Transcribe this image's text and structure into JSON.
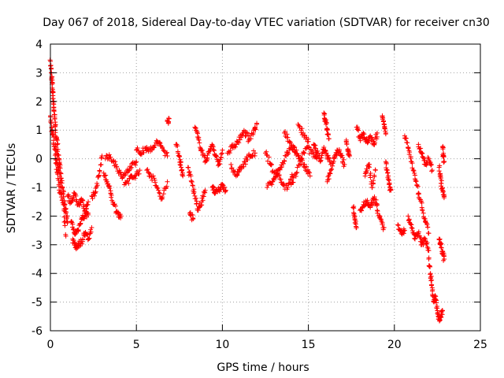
{
  "chart_data": {
    "type": "scatter",
    "title": "Day 067 of 2018, Sidereal Day-to-day VTEC variation (SDTVAR) for receiver cn30",
    "xlabel": "GPS time / hours",
    "ylabel": "SDTVAR / TECUs",
    "xlim": [
      0,
      25
    ],
    "ylim": [
      -6,
      4
    ],
    "xticks": [
      0,
      5,
      10,
      15,
      20,
      25
    ],
    "xtick_labels": [
      "0",
      "5",
      "10",
      "15",
      "20",
      "25"
    ],
    "yticks": [
      -6,
      -5,
      -4,
      -3,
      -2,
      -1,
      0,
      1,
      2,
      3,
      4
    ],
    "ytick_labels": [
      "-6",
      "-5",
      "-4",
      "-3",
      "-2",
      "-1",
      "0",
      "1",
      "2",
      "3",
      "4"
    ],
    "grid": true,
    "marker": "+",
    "series": [
      {
        "name": "SDTVAR",
        "color": "#ff0000",
        "segments": [
          {
            "x": [
              0.0,
              0.05,
              0.1,
              0.15,
              0.2,
              0.25,
              0.3,
              0.4,
              0.5,
              0.6,
              0.7,
              0.8,
              0.9,
              1.0
            ],
            "y": [
              3.4,
              3.0,
              2.6,
              2.2,
              1.8,
              1.4,
              1.0,
              0.5,
              0.0,
              -0.5,
              -1.0,
              -1.5,
              -1.9,
              -2.2
            ]
          },
          {
            "x": [
              0.3,
              0.45,
              0.6,
              0.75,
              0.9
            ],
            "y": [
              0.5,
              -0.3,
              -1.0,
              -1.6,
              -2.7
            ]
          },
          {
            "x": [
              0.0,
              0.1,
              0.2,
              0.3,
              0.4,
              0.55
            ],
            "y": [
              1.5,
              1.0,
              0.5,
              0.0,
              -0.5,
              -1.2
            ]
          },
          {
            "x": [
              1.0,
              1.2,
              1.4,
              1.6,
              1.8,
              2.0,
              2.2
            ],
            "y": [
              -1.3,
              -1.5,
              -1.2,
              -1.6,
              -1.4,
              -1.8,
              -1.5
            ]
          },
          {
            "x": [
              1.3,
              1.45,
              1.6,
              1.8,
              2.0,
              2.2,
              2.4
            ],
            "y": [
              -2.8,
              -3.1,
              -3.0,
              -2.9,
              -2.6,
              -2.8,
              -2.4
            ]
          },
          {
            "x": [
              1.2,
              1.4,
              1.6,
              1.8,
              2.0,
              2.2
            ],
            "y": [
              -2.2,
              -2.6,
              -2.5,
              -2.1,
              -2.0,
              -1.9
            ]
          },
          {
            "x": [
              2.4,
              2.6,
              2.8,
              3.0
            ],
            "y": [
              -1.3,
              -1.2,
              -0.6,
              0.1
            ]
          },
          {
            "x": [
              3.1,
              3.3,
              3.5,
              3.7,
              3.9,
              4.1
            ],
            "y": [
              -0.5,
              -0.8,
              -1.2,
              -1.6,
              -1.9,
              -2.0
            ]
          },
          {
            "x": [
              3.2,
              3.5,
              3.8,
              4.1,
              4.4,
              4.7,
              5.0
            ],
            "y": [
              0.0,
              0.05,
              -0.2,
              -0.6,
              -0.5,
              -0.3,
              -0.1
            ]
          },
          {
            "x": [
              4.3,
              4.6,
              4.9,
              5.2
            ],
            "y": [
              -0.9,
              -0.7,
              -0.6,
              -0.4
            ]
          },
          {
            "x": [
              5.0,
              5.3,
              5.6,
              5.9,
              6.2,
              6.5,
              6.8
            ],
            "y": [
              0.3,
              0.2,
              0.4,
              0.3,
              0.6,
              0.4,
              0.1
            ]
          },
          {
            "x": [
              5.6,
              5.9,
              6.2,
              6.5,
              6.8
            ],
            "y": [
              -0.4,
              -0.6,
              -1.0,
              -1.4,
              -0.8
            ]
          },
          {
            "x": [
              6.8,
              6.9
            ],
            "y": [
              1.3,
              1.4
            ]
          },
          {
            "x": [
              7.3,
              7.5,
              7.6,
              7.7
            ],
            "y": [
              0.5,
              0.1,
              -0.3,
              -0.6
            ]
          },
          {
            "x": [
              8.0,
              8.2,
              8.4,
              8.6,
              8.8,
              9.0
            ],
            "y": [
              -0.3,
              -0.8,
              -1.3,
              -1.8,
              -1.5,
              -1.1
            ]
          },
          {
            "x": [
              8.1,
              8.3
            ],
            "y": [
              -1.9,
              -2.1
            ]
          },
          {
            "x": [
              8.4,
              8.6,
              8.8,
              9.0,
              9.2,
              9.4,
              9.6,
              9.8,
              10.0
            ],
            "y": [
              1.1,
              0.7,
              0.3,
              -0.1,
              0.2,
              0.5,
              0.1,
              -0.2,
              0.3
            ]
          },
          {
            "x": [
              9.4,
              9.6,
              9.8,
              10.0,
              10.2
            ],
            "y": [
              -1.0,
              -1.2,
              -1.1,
              -0.9,
              -1.1
            ]
          },
          {
            "x": [
              10.3,
              10.6,
              10.9,
              11.2,
              11.5
            ],
            "y": [
              0.2,
              0.4,
              0.6,
              0.9,
              0.8
            ]
          },
          {
            "x": [
              10.5,
              10.8,
              11.0,
              11.3,
              11.6,
              11.9
            ],
            "y": [
              -0.2,
              -0.6,
              -0.4,
              -0.1,
              0.1,
              0.2
            ]
          },
          {
            "x": [
              11.5,
              11.8,
              12.0
            ],
            "y": [
              0.6,
              0.9,
              1.2
            ]
          },
          {
            "x": [
              12.5,
              12.8,
              13.1,
              13.4,
              13.7,
              14.0,
              14.3
            ],
            "y": [
              0.2,
              -0.2,
              -0.6,
              -0.3,
              0.1,
              0.4,
              0.3
            ]
          },
          {
            "x": [
              12.6,
              12.9,
              13.2,
              13.5,
              13.8,
              14.1
            ],
            "y": [
              -1.0,
              -0.8,
              -0.4,
              -0.9,
              -1.0,
              -0.6
            ]
          },
          {
            "x": [
              13.6,
              13.9,
              14.2,
              14.5,
              14.8,
              15.1
            ],
            "y": [
              0.9,
              0.6,
              0.3,
              0.0,
              -0.3,
              -0.6
            ]
          },
          {
            "x": [
              14.0,
              14.3,
              14.6,
              14.9,
              15.2,
              15.5
            ],
            "y": [
              -0.9,
              -0.5,
              0.0,
              0.4,
              0.2,
              0.0
            ]
          },
          {
            "x": [
              14.4,
              14.7,
              15.0
            ],
            "y": [
              1.2,
              0.9,
              0.6
            ]
          },
          {
            "x": [
              15.3,
              15.5,
              15.7,
              15.9,
              16.1,
              16.3
            ],
            "y": [
              0.5,
              0.2,
              -0.1,
              0.4,
              0.1,
              -0.2
            ]
          },
          {
            "x": [
              15.9,
              16.0,
              16.1,
              16.2
            ],
            "y": [
              1.6,
              1.3,
              1.0,
              0.7
            ]
          },
          {
            "x": [
              16.1,
              16.3,
              16.5,
              16.7,
              16.9,
              17.1
            ],
            "y": [
              -0.8,
              -0.4,
              0.0,
              0.3,
              0.1,
              -0.2
            ]
          },
          {
            "x": [
              17.2,
              17.3,
              17.4
            ],
            "y": [
              0.6,
              0.3,
              0.1
            ]
          },
          {
            "x": [
              17.6,
              17.7,
              17.8
            ],
            "y": [
              -1.7,
              -2.1,
              -2.4
            ]
          },
          {
            "x": [
              17.8,
              18.0,
              18.2,
              18.4,
              18.6,
              18.8,
              19.0
            ],
            "y": [
              1.1,
              0.7,
              0.9,
              0.6,
              0.8,
              0.5,
              0.9
            ]
          },
          {
            "x": [
              18.0,
              18.2,
              18.4,
              18.6,
              18.8,
              19.0
            ],
            "y": [
              -1.8,
              -1.6,
              -1.5,
              -1.7,
              -1.4,
              -1.6
            ]
          },
          {
            "x": [
              18.3,
              18.5,
              18.7,
              18.9
            ],
            "y": [
              -0.6,
              -0.2,
              -1.0,
              -0.4
            ]
          },
          {
            "x": [
              19.0,
              19.2,
              19.4
            ],
            "y": [
              -1.8,
              -2.1,
              -2.4
            ]
          },
          {
            "x": [
              19.3,
              19.4,
              19.5
            ],
            "y": [
              1.5,
              1.2,
              0.9
            ]
          },
          {
            "x": [
              19.5,
              19.6,
              19.7,
              19.8
            ],
            "y": [
              -0.1,
              -0.5,
              -0.9,
              -1.1
            ]
          },
          {
            "x": [
              20.2,
              20.4,
              20.6
            ],
            "y": [
              -2.3,
              -2.6,
              -2.5
            ]
          },
          {
            "x": [
              20.6,
              20.8,
              21.0,
              21.2,
              21.4,
              21.6,
              21.8,
              22.0
            ],
            "y": [
              0.8,
              0.4,
              -0.1,
              -0.7,
              -1.2,
              -1.7,
              -2.2,
              -2.6
            ]
          },
          {
            "x": [
              20.8,
              21.0,
              21.2,
              21.4,
              21.6,
              21.8,
              22.0
            ],
            "y": [
              -2.0,
              -2.4,
              -2.8,
              -2.6,
              -3.0,
              -2.8,
              -3.2
            ]
          },
          {
            "x": [
              21.4,
              21.6,
              21.8,
              22.0,
              22.2
            ],
            "y": [
              0.5,
              0.2,
              -0.2,
              0.0,
              -0.4
            ]
          },
          {
            "x": [
              22.0,
              22.1,
              22.2,
              22.3,
              22.4,
              22.5
            ],
            "y": [
              -3.5,
              -4.0,
              -4.5,
              -5.0,
              -4.8,
              -5.3
            ]
          },
          {
            "x": [
              22.5,
              22.6,
              22.7,
              22.8
            ],
            "y": [
              -5.4,
              -5.6,
              -5.5,
              -5.3
            ]
          },
          {
            "x": [
              22.6,
              22.7,
              22.8,
              22.9
            ],
            "y": [
              -2.8,
              -3.0,
              -3.3,
              -3.5
            ]
          },
          {
            "x": [
              22.6,
              22.7,
              22.8,
              22.9
            ],
            "y": [
              -0.3,
              -0.7,
              -1.1,
              -1.3
            ]
          },
          {
            "x": [
              22.8,
              22.85,
              22.9
            ],
            "y": [
              0.4,
              0.1,
              -0.1
            ]
          }
        ]
      }
    ]
  }
}
